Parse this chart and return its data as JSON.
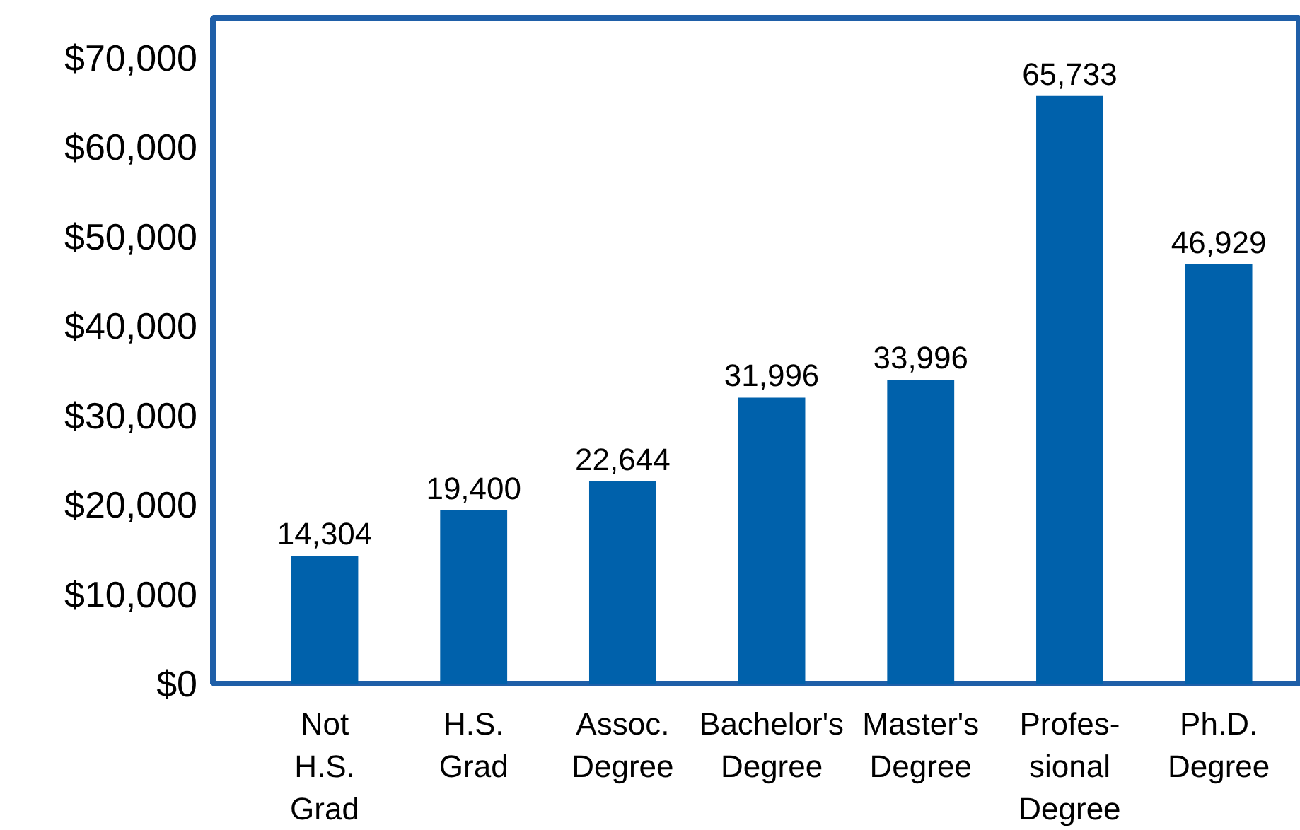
{
  "chart_data": {
    "type": "bar",
    "categories": [
      "Not\nH.S.\nGrad",
      "H.S.\nGrad",
      "Assoc.\nDegree",
      "Bachelor's\nDegree",
      "Master's\nDegree",
      "Profes-\nsional\nDegree",
      "Ph.D.\nDegree"
    ],
    "values": [
      14304,
      19400,
      22644,
      31996,
      33996,
      65733,
      46929
    ],
    "color": "#0061ab",
    "value_labels": [
      "14,304",
      "19,400",
      "22,644",
      "31,996",
      "33,996",
      "65,733",
      "46,929"
    ],
    "ylim": [
      0,
      74500
    ],
    "yticks": [
      {
        "value": 0,
        "label": "$0"
      },
      {
        "value": 10000,
        "label": "$10,000"
      },
      {
        "value": 20000,
        "label": "$20,000"
      },
      {
        "value": 30000,
        "label": "$30,000"
      },
      {
        "value": 40000,
        "label": "$40,000"
      },
      {
        "value": 50000,
        "label": "$50,000"
      },
      {
        "value": 60000,
        "label": "$60,000"
      },
      {
        "value": 70000,
        "label": "$70,000"
      }
    ],
    "grid": false
  }
}
